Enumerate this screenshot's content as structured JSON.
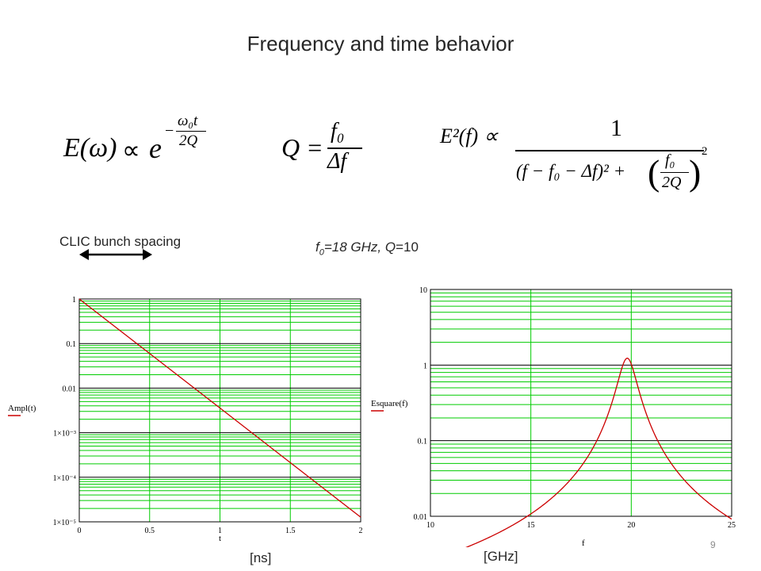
{
  "slide": {
    "title": "Frequency and time behavior",
    "bunch_label": "CLIC bunch spacing",
    "params_f0": "f",
    "params_sub": "0",
    "params_rest": "=18 GHz, Q",
    "params_tail": "=10",
    "unit_time": "[ns]",
    "unit_freq": "[GHz]",
    "page_number": "9"
  },
  "formulas": {
    "E_lhs": "E(ω)",
    "E_prop": "∝",
    "E_base": "e",
    "E_exp_minus": "−",
    "E_exp_num": "ω₀t",
    "E_exp_den": "2Q",
    "Q_lhs": "Q =",
    "Q_num": "f₀",
    "Q_den": "Δf",
    "E2_lhs": "E²(f) ∝",
    "E2_num": "1",
    "E2_den_a": "(f − f₀ − Δf)² +",
    "E2_den_num": "f₀",
    "E2_den_den": "2Q",
    "E2_den_sq": "2"
  },
  "colors": {
    "grid_minor": "#00cc00",
    "grid_major": "#000000",
    "curve": "#cc0000"
  },
  "chart_data": [
    {
      "type": "line",
      "ylabel": "Ampl(t)",
      "xlabel": "t",
      "x_unit": "[ns]",
      "xlim": [
        0,
        2
      ],
      "ylim": [
        1e-05,
        1
      ],
      "yscale": "log",
      "x_ticks": [
        "0",
        "0.5",
        "1",
        "1.5",
        "2"
      ],
      "y_ticks": [
        "1",
        "0.1",
        "0.01",
        "1×10⁻³",
        "1×10⁻⁴",
        "1×10⁻⁵"
      ],
      "grid": true,
      "series": [
        {
          "x": [
            0,
            0.5,
            1,
            1.5,
            2
          ],
          "y": [
            1,
            0.0597,
            0.00357,
            0.000213,
            1.27e-05
          ]
        }
      ]
    },
    {
      "type": "line",
      "ylabel": "Esquare(f)",
      "xlabel": "f",
      "x_unit": "[GHz]",
      "xlim": [
        10,
        25
      ],
      "ylim": [
        0.01,
        10
      ],
      "yscale": "log",
      "x_ticks": [
        "10",
        "15",
        "20",
        "25"
      ],
      "y_ticks": [
        "10",
        "1",
        "0.1",
        "0.01"
      ],
      "grid": true,
      "series": [
        {
          "x": [
            10,
            12,
            14,
            15,
            16,
            17,
            18,
            19,
            19.5,
            19.8,
            20.2,
            21,
            22,
            23,
            24,
            25
          ],
          "y": [
            0.0121,
            0.0189,
            0.0326,
            0.045,
            0.0659,
            0.107,
            0.201,
            0.48,
            0.898,
            1.234,
            0.98,
            0.336,
            0.14,
            0.0753,
            0.0469,
            0.0319
          ]
        }
      ]
    }
  ]
}
